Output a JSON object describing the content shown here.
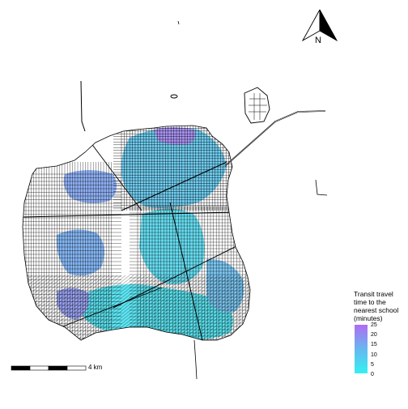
{
  "map": {
    "north_arrow_label": "N",
    "scale_bar": {
      "label": "4 km",
      "segments": 4
    },
    "legend": {
      "title": "Transit travel time to the nearest school (minutes)",
      "ticks": [
        "25",
        "20",
        "15",
        "10",
        "5",
        "0"
      ],
      "range": [
        0,
        25
      ],
      "color_low": "#35f0f0",
      "color_high": "#b06cf2"
    },
    "colors": {
      "street_lines": "#000000",
      "background": "#ffffff",
      "coverage_low": "#35f0f0",
      "coverage_mid": "#5fb4ee",
      "coverage_high": "#b06cf2"
    }
  }
}
